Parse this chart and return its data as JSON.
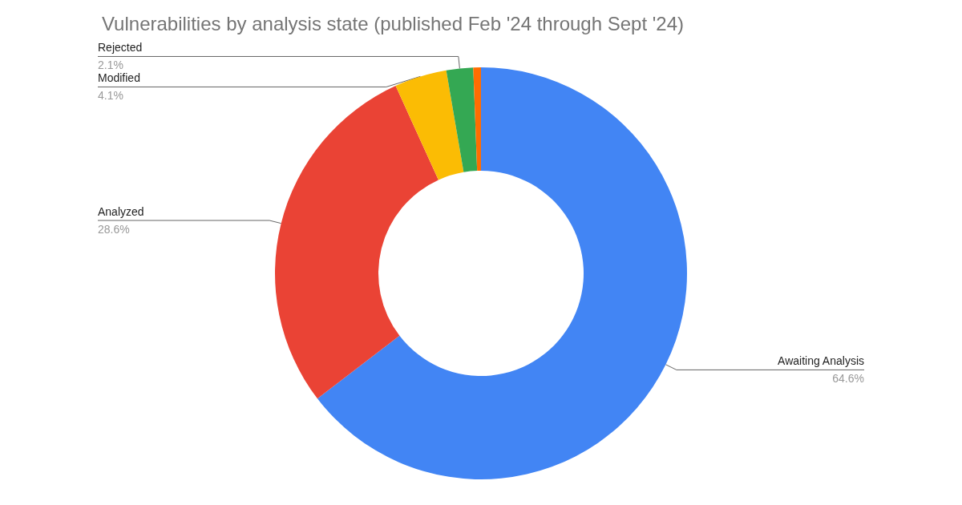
{
  "chart_data": {
    "type": "donut",
    "title": "Vulnerabilities by analysis state (published Feb '24 through Sept '24)",
    "categories": [
      "Awaiting Analysis",
      "Analyzed",
      "Modified",
      "Rejected",
      null
    ],
    "values": [
      64.6,
      28.6,
      4.1,
      2.1,
      0.6
    ],
    "value_labels": [
      "64.6%",
      "28.6%",
      "4.1%",
      "2.1%",
      null
    ],
    "colors": [
      "#4285f4",
      "#ea4335",
      "#fbbc04",
      "#34a853",
      "#ff6d01"
    ],
    "legend": false
  }
}
